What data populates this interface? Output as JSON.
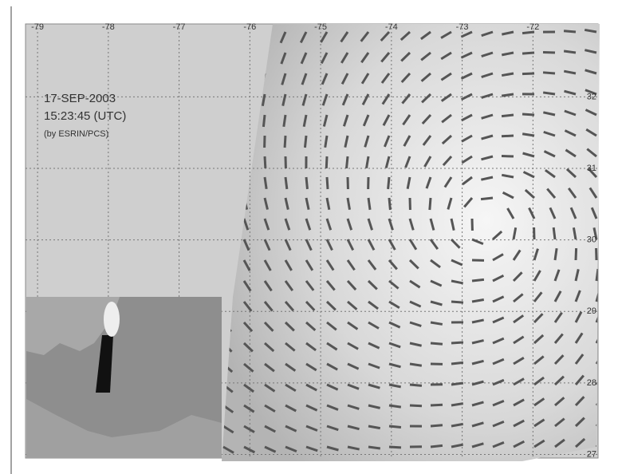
{
  "map": {
    "lines": [
      "17-SEP-2003",
      "15:23:45 (UTC)",
      "(by ESRIN/PCS)"
    ],
    "xlim": [
      -79.17,
      -71.08
    ],
    "ylim": [
      26.95,
      33.02
    ],
    "xticks": [
      -79,
      -78,
      -77,
      -76,
      -75,
      -74,
      -73,
      -72
    ],
    "yticks": [
      32,
      31,
      30,
      29,
      28,
      27
    ]
  }
}
